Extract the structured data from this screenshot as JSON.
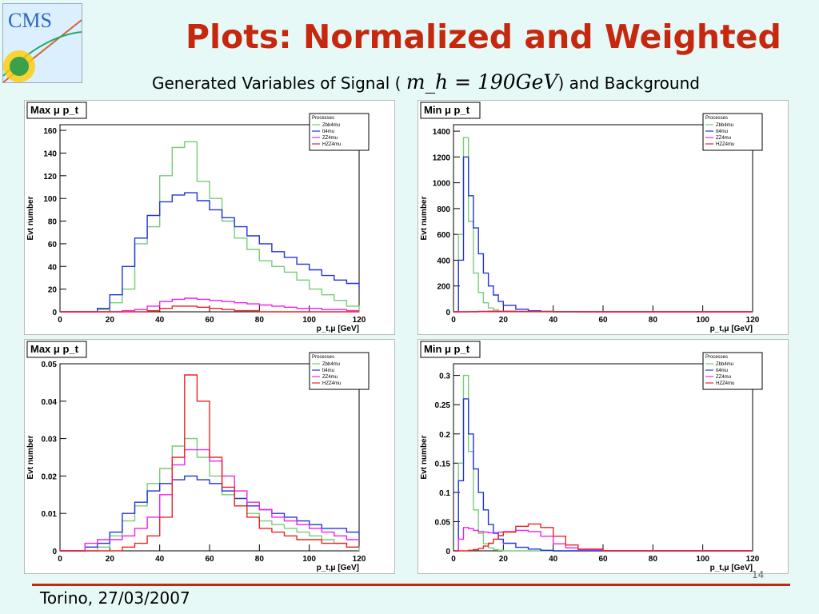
{
  "slide": {
    "logo_text": "CMS",
    "title": "Plots: Normalized and Weighted",
    "subtitle_pre": "Generated Variables of Signal (",
    "subtitle_math": "m_h = 190GeV",
    "subtitle_post": ") and Background",
    "footer": "Torino, 27/03/2007",
    "page_number": "14"
  },
  "colors": {
    "title": "#c6280f",
    "zbb": "#77cc77",
    "ttbar": "#2233dd",
    "zz": "#ee22ee",
    "hzz": "#ee2222"
  },
  "chart_data": [
    {
      "type": "line",
      "title": "Max μ p_t",
      "xlabel": "p_t,μ [GeV]",
      "ylabel": "Evt number",
      "xlim": [
        0,
        120
      ],
      "ylim": [
        0,
        165
      ],
      "xticks": [
        0,
        20,
        40,
        60,
        80,
        100,
        120
      ],
      "yticks": [
        0,
        20,
        40,
        60,
        80,
        100,
        120,
        140,
        160
      ],
      "legend_title": "Processes",
      "legend_position": "top-right",
      "x": [
        0,
        5,
        10,
        15,
        20,
        25,
        30,
        35,
        40,
        45,
        50,
        55,
        60,
        65,
        70,
        75,
        80,
        85,
        90,
        95,
        100,
        105,
        110,
        115,
        120
      ],
      "series": [
        {
          "name": "Zbb4mu",
          "color": "#77cc77",
          "values": [
            0,
            0,
            0,
            2,
            8,
            20,
            60,
            75,
            120,
            145,
            150,
            115,
            100,
            80,
            65,
            55,
            45,
            40,
            35,
            28,
            20,
            15,
            10,
            5,
            0
          ]
        },
        {
          "name": "tt4mu",
          "color": "#2233dd",
          "values": [
            0,
            0,
            0,
            3,
            15,
            40,
            65,
            85,
            97,
            103,
            105,
            98,
            90,
            83,
            75,
            67,
            60,
            53,
            48,
            42,
            37,
            32,
            28,
            25,
            20
          ]
        },
        {
          "name": "ZZ4mu",
          "color": "#ee22ee",
          "values": [
            0,
            0,
            0,
            0,
            0,
            1,
            2,
            5,
            9,
            11,
            12,
            11,
            10,
            9,
            8,
            7,
            6,
            5,
            4,
            3,
            3,
            2,
            2,
            1,
            1
          ]
        },
        {
          "name": "HZZ4mu",
          "color": "#ee2222",
          "values": [
            0,
            0,
            0,
            0,
            0,
            0,
            0,
            1,
            3,
            5,
            5,
            4,
            3,
            2,
            1,
            1,
            0,
            0,
            0,
            0,
            0,
            0,
            0,
            0,
            0
          ]
        }
      ]
    },
    {
      "type": "line",
      "title": "Min μ p_t",
      "xlabel": "p_t,μ [GeV]",
      "ylabel": "Evt number",
      "xlim": [
        0,
        120
      ],
      "ylim": [
        0,
        1450
      ],
      "xticks": [
        0,
        20,
        40,
        60,
        80,
        100,
        120
      ],
      "yticks": [
        0,
        200,
        400,
        600,
        800,
        1000,
        1200,
        1400
      ],
      "legend_title": "Processes",
      "legend_position": "top-right",
      "x": [
        0,
        2,
        4,
        6,
        8,
        10,
        12,
        14,
        16,
        18,
        20,
        25,
        30,
        35,
        40,
        50,
        60,
        80,
        100,
        120
      ],
      "series": [
        {
          "name": "Zbb4mu",
          "color": "#77cc77",
          "values": [
            0,
            600,
            1350,
            700,
            300,
            150,
            70,
            30,
            15,
            5,
            0,
            0,
            0,
            0,
            0,
            0,
            0,
            0,
            0,
            0
          ]
        },
        {
          "name": "tt4mu",
          "color": "#2233dd",
          "values": [
            0,
            400,
            1200,
            900,
            650,
            450,
            300,
            200,
            130,
            80,
            50,
            20,
            8,
            3,
            0,
            0,
            0,
            0,
            0,
            0
          ]
        },
        {
          "name": "ZZ4mu",
          "color": "#ee22ee",
          "values": [
            0,
            0,
            0,
            1,
            2,
            3,
            4,
            5,
            5,
            5,
            5,
            4,
            3,
            2,
            1,
            0,
            0,
            0,
            0,
            0
          ]
        },
        {
          "name": "HZZ4mu",
          "color": "#ee2222",
          "values": [
            0,
            0,
            0,
            0,
            0,
            1,
            1,
            2,
            2,
            2,
            2,
            2,
            2,
            1,
            1,
            0,
            0,
            0,
            0,
            0
          ]
        }
      ]
    },
    {
      "type": "line",
      "title": "Max μ p_t",
      "xlabel": "p_t,μ [GeV]",
      "ylabel": "Evt number",
      "xlim": [
        0,
        120
      ],
      "ylim": [
        0,
        0.05
      ],
      "xticks": [
        0,
        20,
        40,
        60,
        80,
        100,
        120
      ],
      "yticks": [
        0,
        0.01,
        0.02,
        0.03,
        0.04,
        0.05
      ],
      "legend_title": "Processes",
      "legend_position": "top-right",
      "x": [
        0,
        5,
        10,
        15,
        20,
        25,
        30,
        35,
        40,
        45,
        50,
        55,
        60,
        65,
        70,
        75,
        80,
        85,
        90,
        95,
        100,
        105,
        110,
        115,
        120
      ],
      "series": [
        {
          "name": "Zbb4mu",
          "color": "#77cc77",
          "values": [
            0,
            0,
            0,
            0.001,
            0.004,
            0.008,
            0.012,
            0.018,
            0.022,
            0.028,
            0.03,
            0.025,
            0.02,
            0.015,
            0.012,
            0.01,
            0.008,
            0.007,
            0.006,
            0.005,
            0.004,
            0.003,
            0.002,
            0.001,
            0
          ]
        },
        {
          "name": "tt4mu",
          "color": "#2233dd",
          "values": [
            0,
            0,
            0.001,
            0.002,
            0.005,
            0.01,
            0.013,
            0.016,
            0.018,
            0.019,
            0.02,
            0.019,
            0.018,
            0.016,
            0.014,
            0.012,
            0.011,
            0.01,
            0.009,
            0.008,
            0.007,
            0.006,
            0.006,
            0.005,
            0.004
          ]
        },
        {
          "name": "ZZ4mu",
          "color": "#ee22ee",
          "values": [
            0,
            0,
            0.002,
            0.003,
            0.003,
            0.004,
            0.006,
            0.009,
            0.015,
            0.023,
            0.027,
            0.027,
            0.024,
            0.02,
            0.016,
            0.013,
            0.011,
            0.009,
            0.008,
            0.007,
            0.006,
            0.005,
            0.004,
            0.003,
            0.003
          ]
        },
        {
          "name": "HZZ4mu",
          "color": "#ee2222",
          "values": [
            0,
            0,
            0,
            0,
            0,
            0.001,
            0.002,
            0.004,
            0.009,
            0.025,
            0.047,
            0.04,
            0.025,
            0.017,
            0.012,
            0.009,
            0.006,
            0.005,
            0.004,
            0.003,
            0.003,
            0.002,
            0.002,
            0.001,
            0.001
          ]
        }
      ]
    },
    {
      "type": "line",
      "title": "Min μ p_t",
      "xlabel": "p_t,μ [GeV]",
      "ylabel": "Evt number",
      "xlim": [
        0,
        120
      ],
      "ylim": [
        0,
        0.32
      ],
      "xticks": [
        0,
        20,
        40,
        60,
        80,
        100,
        120
      ],
      "yticks": [
        0,
        0.05,
        0.1,
        0.15,
        0.2,
        0.25,
        0.3
      ],
      "legend_title": "Processes",
      "legend_position": "top-right",
      "x": [
        0,
        2,
        4,
        6,
        8,
        10,
        12,
        14,
        16,
        18,
        20,
        25,
        30,
        35,
        40,
        45,
        50,
        60,
        80,
        100,
        120
      ],
      "series": [
        {
          "name": "Zbb4mu",
          "color": "#77cc77",
          "values": [
            0,
            0.15,
            0.3,
            0.17,
            0.07,
            0.03,
            0.012,
            0.005,
            0.002,
            0.001,
            0,
            0,
            0,
            0,
            0,
            0,
            0,
            0,
            0,
            0,
            0
          ]
        },
        {
          "name": "tt4mu",
          "color": "#2233dd",
          "values": [
            0,
            0.12,
            0.26,
            0.2,
            0.14,
            0.1,
            0.07,
            0.045,
            0.03,
            0.02,
            0.013,
            0.006,
            0.003,
            0.001,
            0,
            0,
            0,
            0,
            0,
            0,
            0
          ]
        },
        {
          "name": "ZZ4mu",
          "color": "#ee22ee",
          "values": [
            0,
            0.02,
            0.04,
            0.038,
            0.035,
            0.033,
            0.032,
            0.031,
            0.031,
            0.032,
            0.033,
            0.035,
            0.033,
            0.025,
            0.012,
            0.005,
            0.002,
            0,
            0,
            0,
            0
          ]
        },
        {
          "name": "HZZ4mu",
          "color": "#ee2222",
          "values": [
            0,
            0,
            0,
            0.001,
            0.002,
            0.004,
            0.008,
            0.013,
            0.02,
            0.026,
            0.032,
            0.042,
            0.046,
            0.04,
            0.025,
            0.01,
            0.003,
            0,
            0,
            0,
            0
          ]
        }
      ]
    }
  ]
}
